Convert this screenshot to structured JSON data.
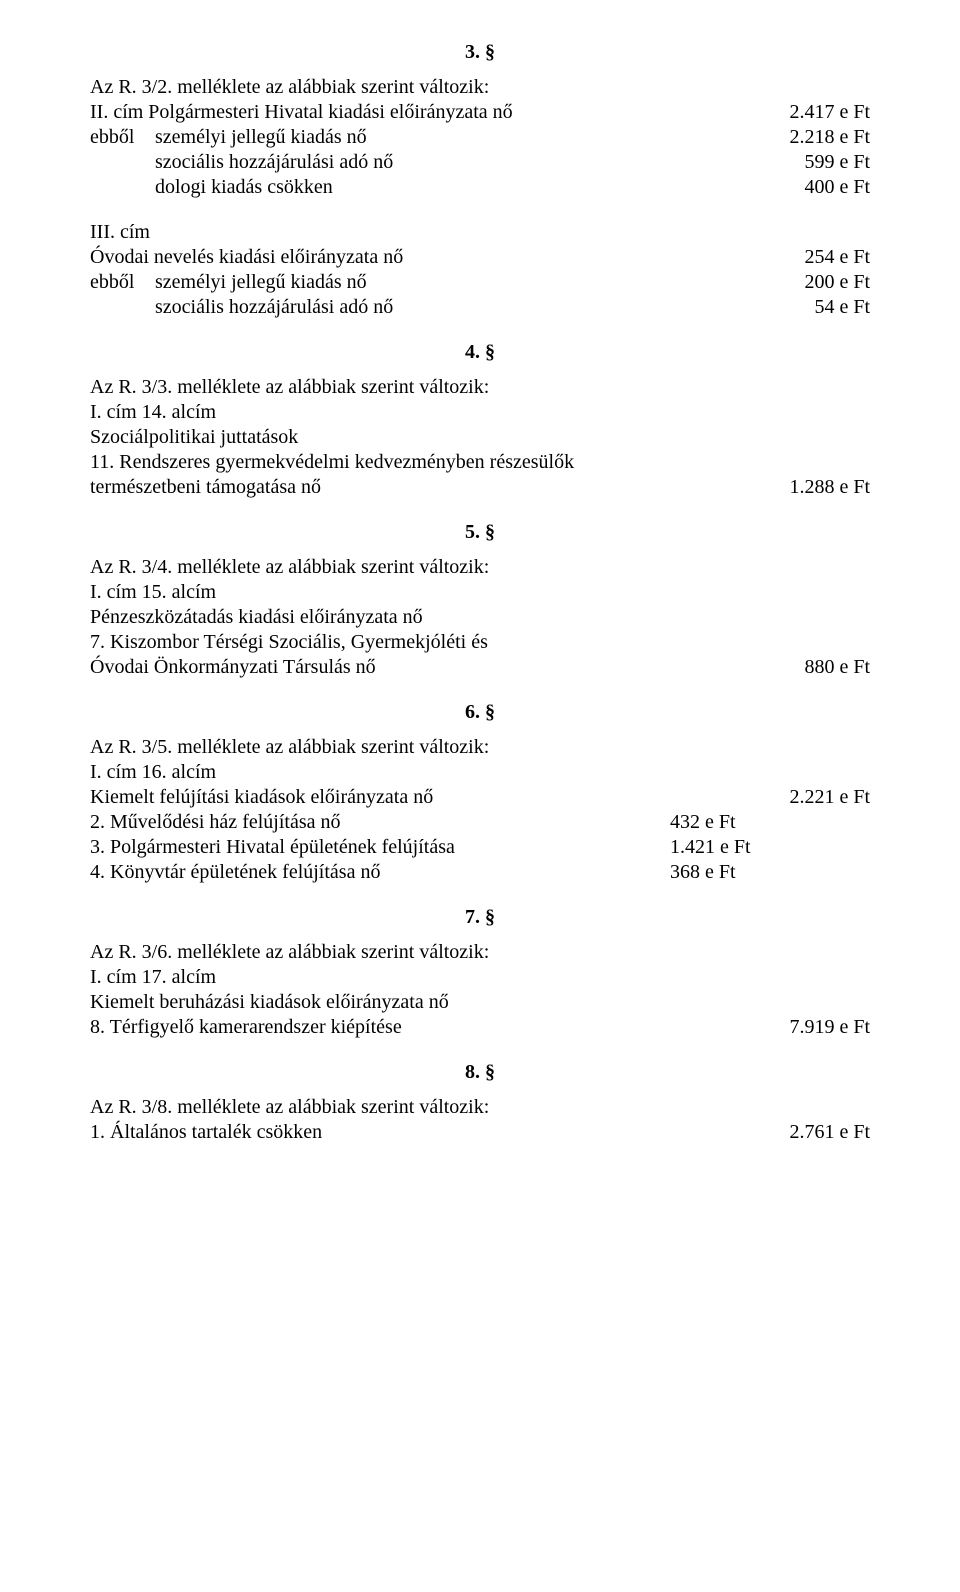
{
  "font": {
    "family": "Times New Roman",
    "size_pt": 15,
    "color": "#000000"
  },
  "background": "#ffffff",
  "s3": {
    "num": "3. §",
    "l1": "Az R. 3/2. melléklete az alábbiak szerint változik:",
    "l2_left": "II. cím Polgármesteri Hivatal kiadási előirányzata nő",
    "l2_right": "2.417 e Ft",
    "r1_lbl": "ebből",
    "r1_txt": "személyi jellegű kiadás nő",
    "r1_amt": "2.218 e Ft",
    "r2_lbl": "",
    "r2_txt": "szociális hozzájárulási adó nő",
    "r2_amt": "599 e Ft",
    "r3_lbl": "",
    "r3_txt": "dologi kiadás csökken",
    "r3_amt": "400 e Ft",
    "iii": "III. cím",
    "iii_left": "Óvodai nevelés kiadási előirányzata nő",
    "iii_right": "254 e Ft",
    "r4_lbl": "ebből",
    "r4_txt": "személyi jellegű kiadás nő",
    "r4_amt": "200 e Ft",
    "r5_lbl": "",
    "r5_txt": "szociális hozzájárulási adó nő",
    "r5_amt": "54 e Ft"
  },
  "s4": {
    "num": "4. §",
    "l1": "Az R. 3/3. melléklete az alábbiak szerint változik:",
    "l2": "I. cím 14. alcím",
    "l3": "Szociálpolitikai juttatások",
    "l4a": "11. Rendszeres gyermekvédelmi kedvezményben részesülők",
    "l4b": "természetbeni támogatása nő",
    "l4_right": "1.288 e Ft"
  },
  "s5": {
    "num": "5. §",
    "l1": "Az R. 3/4. melléklete az alábbiak szerint változik:",
    "l2": "I. cím 15. alcím",
    "l3": "Pénzeszközátadás kiadási előirányzata nő",
    "l4a": "7. Kiszombor Térségi Szociális, Gyermekjóléti és",
    "l4b": "Óvodai Önkormányzati Társulás nő",
    "l4_right": "880 e Ft"
  },
  "s6": {
    "num": "6. §",
    "l1": "Az R. 3/5. melléklete az alábbiak szerint változik:",
    "l2": "I. cím 16. alcím",
    "l3_left": "Kiemelt felújítási kiadások előirányzata nő",
    "l3_right": "2.221 e Ft",
    "r1_txt": "2. Művelődési ház felújítása nő",
    "r1_amt": "432 e Ft",
    "r2_txt": "3. Polgármesteri Hivatal épületének felújítása",
    "r2_amt": "1.421 e Ft",
    "r3_txt": "4. Könyvtár épületének felújítása nő",
    "r3_amt": "368 e Ft"
  },
  "s7": {
    "num": "7. §",
    "l1": "Az R. 3/6. melléklete az alábbiak szerint változik:",
    "l2": "I. cím 17. alcím",
    "l3": "Kiemelt beruházási kiadások előirányzata nő",
    "l4_left": "8. Térfigyelő kamerarendszer kiépítése",
    "l4_right": "7.919 e Ft"
  },
  "s8": {
    "num": "8. §",
    "l1": "Az R. 3/8. melléklete az alábbiak szerint változik:",
    "l2_left": "1. Általános tartalék csökken",
    "l2_right": "2.761 e Ft"
  }
}
